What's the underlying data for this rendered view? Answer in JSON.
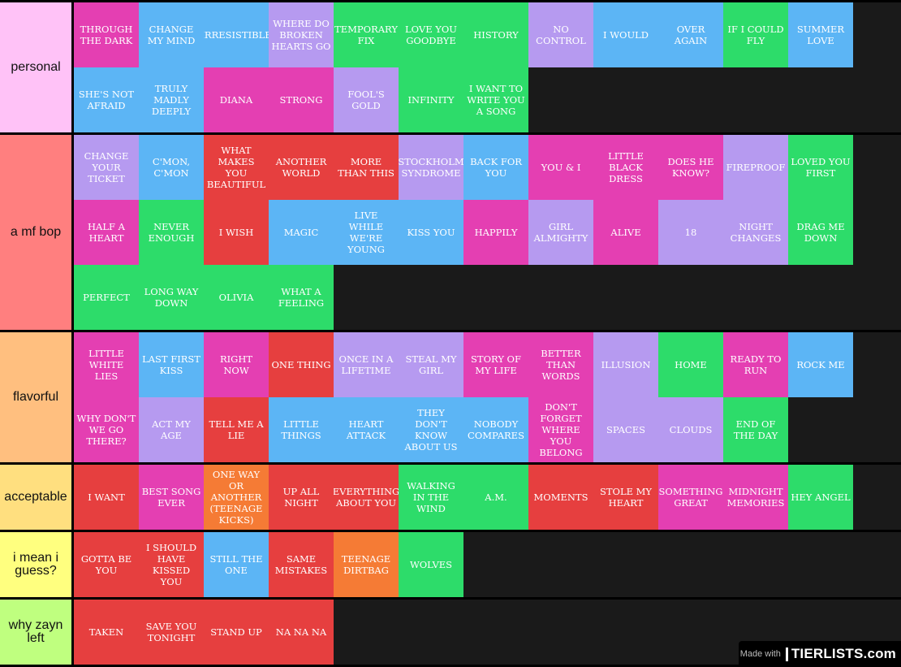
{
  "colors": {
    "pink": "#e43fb2",
    "blue": "#5cb5f5",
    "purple": "#b69af0",
    "green": "#2ddc6a",
    "red": "#e63f3f",
    "orange": "#f57b35"
  },
  "tiers": [
    {
      "label": "personal",
      "color": "#ffc2f7",
      "items": [
        {
          "text": "THROUGH THE DARK",
          "color": "pink"
        },
        {
          "text": "CHANGE MY MIND",
          "color": "blue"
        },
        {
          "text": "IRRESISTIBLE",
          "color": "blue"
        },
        {
          "text": "WHERE DO BROKEN HEARTS GO",
          "color": "purple"
        },
        {
          "text": "TEMPORARY FIX",
          "color": "green"
        },
        {
          "text": "LOVE YOU GOODBYE",
          "color": "green"
        },
        {
          "text": "HISTORY",
          "color": "green"
        },
        {
          "text": "NO CONTROL",
          "color": "purple"
        },
        {
          "text": "I WOULD",
          "color": "blue"
        },
        {
          "text": "OVER AGAIN",
          "color": "blue"
        },
        {
          "text": "IF I COULD FLY",
          "color": "green"
        },
        {
          "text": "SUMMER LOVE",
          "color": "blue"
        },
        {
          "text": "SHE'S NOT AFRAID",
          "color": "blue"
        },
        {
          "text": "TRULY MADLY DEEPLY",
          "color": "blue"
        },
        {
          "text": "DIANA",
          "color": "pink"
        },
        {
          "text": "STRONG",
          "color": "pink"
        },
        {
          "text": "FOOL'S GOLD",
          "color": "purple"
        },
        {
          "text": "INFINITY",
          "color": "green"
        },
        {
          "text": "I WANT TO WRITE YOU A SONG",
          "color": "green"
        }
      ]
    },
    {
      "label": "a mf bop",
      "color": "#ff7f7f",
      "items": [
        {
          "text": "CHANGE YOUR TICKET",
          "color": "purple"
        },
        {
          "text": "C'MON, C'MON",
          "color": "blue"
        },
        {
          "text": "WHAT MAKES YOU BEAUTIFUL",
          "color": "red"
        },
        {
          "text": "ANOTHER WORLD",
          "color": "red"
        },
        {
          "text": "MORE THAN THIS",
          "color": "red"
        },
        {
          "text": "STOCKHOLM SYNDROME",
          "color": "purple"
        },
        {
          "text": "BACK FOR YOU",
          "color": "blue"
        },
        {
          "text": "YOU & I",
          "color": "pink"
        },
        {
          "text": "LITTLE BLACK DRESS",
          "color": "pink"
        },
        {
          "text": "DOES HE KNOW?",
          "color": "pink"
        },
        {
          "text": "FIREPROOF",
          "color": "purple"
        },
        {
          "text": "LOVED YOU FIRST",
          "color": "green"
        },
        {
          "text": "HALF A HEART",
          "color": "pink"
        },
        {
          "text": "NEVER ENOUGH",
          "color": "green"
        },
        {
          "text": "I WISH",
          "color": "red"
        },
        {
          "text": "MAGIC",
          "color": "blue"
        },
        {
          "text": "LIVE WHILE WE'RE YOUNG",
          "color": "blue"
        },
        {
          "text": "KISS YOU",
          "color": "blue"
        },
        {
          "text": "HAPPILY",
          "color": "pink"
        },
        {
          "text": "GIRL ALMIGHTY",
          "color": "purple"
        },
        {
          "text": "ALIVE",
          "color": "pink"
        },
        {
          "text": "18",
          "color": "purple"
        },
        {
          "text": "NIGHT CHANGES",
          "color": "purple"
        },
        {
          "text": "DRAG ME DOWN",
          "color": "green"
        },
        {
          "text": "PERFECT",
          "color": "green"
        },
        {
          "text": "LONG WAY DOWN",
          "color": "green"
        },
        {
          "text": "OLIVIA",
          "color": "green"
        },
        {
          "text": "WHAT A FEELING",
          "color": "green"
        }
      ]
    },
    {
      "label": "flavorful",
      "color": "#ffbf7f",
      "items": [
        {
          "text": "LITTLE WHITE LIES",
          "color": "pink"
        },
        {
          "text": "LAST FIRST KISS",
          "color": "blue"
        },
        {
          "text": "RIGHT NOW",
          "color": "pink"
        },
        {
          "text": "ONE THING",
          "color": "red"
        },
        {
          "text": "ONCE IN A LIFETIME",
          "color": "purple"
        },
        {
          "text": "STEAL MY GIRL",
          "color": "purple"
        },
        {
          "text": "STORY OF MY LIFE",
          "color": "pink"
        },
        {
          "text": "BETTER THAN WORDS",
          "color": "pink"
        },
        {
          "text": "ILLUSION",
          "color": "purple"
        },
        {
          "text": "HOME",
          "color": "green"
        },
        {
          "text": "READY TO RUN",
          "color": "pink"
        },
        {
          "text": "ROCK ME",
          "color": "blue"
        },
        {
          "text": "WHY DON'T WE GO THERE?",
          "color": "pink"
        },
        {
          "text": "ACT MY AGE",
          "color": "purple"
        },
        {
          "text": "TELL ME A LIE",
          "color": "red"
        },
        {
          "text": "LITTLE THINGS",
          "color": "blue"
        },
        {
          "text": "HEART ATTACK",
          "color": "blue"
        },
        {
          "text": "THEY DON'T KNOW ABOUT US",
          "color": "blue"
        },
        {
          "text": "NOBODY COMPARES",
          "color": "blue"
        },
        {
          "text": "DON'T FORGET WHERE YOU BELONG",
          "color": "pink"
        },
        {
          "text": "SPACES",
          "color": "purple"
        },
        {
          "text": "CLOUDS",
          "color": "purple"
        },
        {
          "text": "END OF THE DAY",
          "color": "green"
        }
      ]
    },
    {
      "label": "acceptable",
      "color": "#ffdf7f",
      "items": [
        {
          "text": "I WANT",
          "color": "red"
        },
        {
          "text": "BEST SONG EVER",
          "color": "pink"
        },
        {
          "text": "ONE WAY OR ANOTHER (TEENAGE KICKS)",
          "color": "orange"
        },
        {
          "text": "UP ALL NIGHT",
          "color": "red"
        },
        {
          "text": "EVERYTHING ABOUT YOU",
          "color": "red"
        },
        {
          "text": "WALKING IN THE WIND",
          "color": "green"
        },
        {
          "text": "A.M.",
          "color": "green"
        },
        {
          "text": "MOMENTS",
          "color": "red"
        },
        {
          "text": "STOLE MY HEART",
          "color": "red"
        },
        {
          "text": "SOMETHING GREAT",
          "color": "pink"
        },
        {
          "text": "MIDNIGHT MEMORIES",
          "color": "pink"
        },
        {
          "text": "HEY ANGEL",
          "color": "green"
        }
      ]
    },
    {
      "label": "i mean i guess?",
      "color": "#ffff7f",
      "items": [
        {
          "text": "GOTTA BE YOU",
          "color": "red"
        },
        {
          "text": "I SHOULD HAVE KISSED YOU",
          "color": "red"
        },
        {
          "text": "STILL THE ONE",
          "color": "blue"
        },
        {
          "text": "SAME MISTAKES",
          "color": "red"
        },
        {
          "text": "TEENAGE DIRTBAG",
          "color": "orange"
        },
        {
          "text": "WOLVES",
          "color": "green"
        }
      ]
    },
    {
      "label": "why zayn left",
      "color": "#bfff7f",
      "items": [
        {
          "text": "TAKEN",
          "color": "red"
        },
        {
          "text": "SAVE YOU TONIGHT",
          "color": "red"
        },
        {
          "text": "STAND UP",
          "color": "red"
        },
        {
          "text": "NA NA NA",
          "color": "red"
        }
      ]
    }
  ],
  "badge": {
    "made_with": "Made with",
    "logo": "TIERLISTS.com"
  }
}
